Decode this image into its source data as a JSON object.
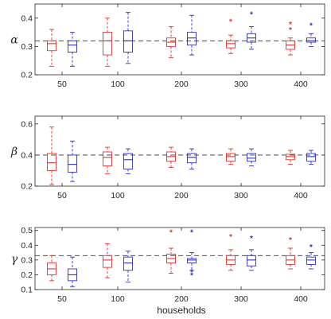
{
  "chart_data": {
    "type": "box",
    "xlabel": "households",
    "x_categories": [
      "50",
      "100",
      "200",
      "300",
      "400"
    ],
    "series": [
      {
        "name": "",
        "color": "#e8312a"
      },
      {
        "name": "",
        "color": "#2f2fc8"
      }
    ],
    "panels": [
      {
        "ylabel": "α",
        "ylim": [
          0.2,
          0.45
        ],
        "yticks": [
          0.2,
          0.3,
          0.4
        ],
        "reference_line": 0.32,
        "boxes": [
          {
            "group": "50",
            "series": 0,
            "whisker_low": 0.23,
            "q1": 0.285,
            "median": 0.31,
            "q3": 0.32,
            "whisker_high": 0.36,
            "outliers": []
          },
          {
            "group": "50",
            "series": 1,
            "whisker_low": 0.23,
            "q1": 0.28,
            "median": 0.305,
            "q3": 0.32,
            "whisker_high": 0.35,
            "outliers": []
          },
          {
            "group": "100",
            "series": 0,
            "whisker_low": 0.23,
            "q1": 0.27,
            "median": 0.32,
            "q3": 0.35,
            "whisker_high": 0.4,
            "outliers": []
          },
          {
            "group": "100",
            "series": 1,
            "whisker_low": 0.24,
            "q1": 0.28,
            "median": 0.32,
            "q3": 0.355,
            "whisker_high": 0.42,
            "outliers": []
          },
          {
            "group": "200",
            "series": 0,
            "whisker_low": 0.26,
            "q1": 0.3,
            "median": 0.315,
            "q3": 0.33,
            "whisker_high": 0.37,
            "outliers": []
          },
          {
            "group": "200",
            "series": 1,
            "whisker_low": 0.27,
            "q1": 0.305,
            "median": 0.33,
            "q3": 0.35,
            "whisker_high": 0.41,
            "outliers": []
          },
          {
            "group": "300",
            "series": 0,
            "whisker_low": 0.275,
            "q1": 0.295,
            "median": 0.31,
            "q3": 0.32,
            "whisker_high": 0.34,
            "outliers": [
              0.39
            ]
          },
          {
            "group": "300",
            "series": 1,
            "whisker_low": 0.29,
            "q1": 0.315,
            "median": 0.33,
            "q3": 0.345,
            "whisker_high": 0.37,
            "outliers": [
              0.415
            ]
          },
          {
            "group": "400",
            "series": 0,
            "whisker_low": 0.27,
            "q1": 0.29,
            "median": 0.305,
            "q3": 0.32,
            "whisker_high": 0.33,
            "outliers": [
              0.36,
              0.38
            ]
          },
          {
            "group": "400",
            "series": 1,
            "whisker_low": 0.3,
            "q1": 0.315,
            "median": 0.32,
            "q3": 0.33,
            "whisker_high": 0.345,
            "outliers": [
              0.375
            ]
          }
        ]
      },
      {
        "ylabel": "β",
        "ylim": [
          0.2,
          0.65
        ],
        "yticks": [
          0.2,
          0.4,
          0.6
        ],
        "reference_line": 0.4,
        "boxes": [
          {
            "group": "50",
            "series": 0,
            "whisker_low": 0.21,
            "q1": 0.3,
            "median": 0.35,
            "q3": 0.41,
            "whisker_high": 0.58,
            "outliers": []
          },
          {
            "group": "50",
            "series": 1,
            "whisker_low": 0.23,
            "q1": 0.29,
            "median": 0.34,
            "q3": 0.4,
            "whisker_high": 0.49,
            "outliers": []
          },
          {
            "group": "100",
            "series": 0,
            "whisker_low": 0.28,
            "q1": 0.33,
            "median": 0.385,
            "q3": 0.42,
            "whisker_high": 0.45,
            "outliers": []
          },
          {
            "group": "100",
            "series": 1,
            "whisker_low": 0.28,
            "q1": 0.31,
            "median": 0.37,
            "q3": 0.41,
            "whisker_high": 0.44,
            "outliers": []
          },
          {
            "group": "200",
            "series": 0,
            "whisker_low": 0.32,
            "q1": 0.36,
            "median": 0.39,
            "q3": 0.42,
            "whisker_high": 0.45,
            "outliers": []
          },
          {
            "group": "200",
            "series": 1,
            "whisker_low": 0.31,
            "q1": 0.35,
            "median": 0.385,
            "q3": 0.41,
            "whisker_high": 0.44,
            "outliers": []
          },
          {
            "group": "300",
            "series": 0,
            "whisker_low": 0.34,
            "q1": 0.36,
            "median": 0.39,
            "q3": 0.41,
            "whisker_high": 0.44,
            "outliers": []
          },
          {
            "group": "300",
            "series": 1,
            "whisker_low": 0.33,
            "q1": 0.36,
            "median": 0.38,
            "q3": 0.41,
            "whisker_high": 0.44,
            "outliers": []
          },
          {
            "group": "400",
            "series": 0,
            "whisker_low": 0.34,
            "q1": 0.37,
            "median": 0.39,
            "q3": 0.405,
            "whisker_high": 0.43,
            "outliers": []
          },
          {
            "group": "400",
            "series": 1,
            "whisker_low": 0.34,
            "q1": 0.36,
            "median": 0.39,
            "q3": 0.41,
            "whisker_high": 0.43,
            "outliers": []
          }
        ]
      },
      {
        "ylabel": "γ",
        "ylim": [
          0.1,
          0.52
        ],
        "yticks": [
          0.1,
          0.2,
          0.3,
          0.4,
          0.5
        ],
        "reference_line": 0.33,
        "boxes": [
          {
            "group": "50",
            "series": 0,
            "whisker_low": 0.16,
            "q1": 0.2,
            "median": 0.24,
            "q3": 0.28,
            "whisker_high": 0.33,
            "outliers": []
          },
          {
            "group": "50",
            "series": 1,
            "whisker_low": 0.12,
            "q1": 0.16,
            "median": 0.2,
            "q3": 0.24,
            "whisker_high": 0.32,
            "outliers": []
          },
          {
            "group": "100",
            "series": 0,
            "whisker_low": 0.18,
            "q1": 0.25,
            "median": 0.3,
            "q3": 0.33,
            "whisker_high": 0.41,
            "outliers": []
          },
          {
            "group": "100",
            "series": 1,
            "whisker_low": 0.15,
            "q1": 0.23,
            "median": 0.28,
            "q3": 0.32,
            "whisker_high": 0.36,
            "outliers": []
          },
          {
            "group": "200",
            "series": 0,
            "whisker_low": 0.21,
            "q1": 0.28,
            "median": 0.31,
            "q3": 0.34,
            "whisker_high": 0.38,
            "outliers": [
              0.49
            ]
          },
          {
            "group": "200",
            "series": 1,
            "whisker_low": 0.23,
            "q1": 0.28,
            "median": 0.3,
            "q3": 0.31,
            "whisker_high": 0.35,
            "outliers": [
              0.49,
              0.22,
              0.2
            ]
          },
          {
            "group": "300",
            "series": 0,
            "whisker_low": 0.23,
            "q1": 0.27,
            "median": 0.3,
            "q3": 0.33,
            "whisker_high": 0.37,
            "outliers": [
              0.46
            ]
          },
          {
            "group": "300",
            "series": 1,
            "whisker_low": 0.23,
            "q1": 0.26,
            "median": 0.3,
            "q3": 0.33,
            "whisker_high": 0.37,
            "outliers": [
              0.45
            ]
          },
          {
            "group": "400",
            "series": 0,
            "whisker_low": 0.24,
            "q1": 0.27,
            "median": 0.3,
            "q3": 0.33,
            "whisker_high": 0.38,
            "outliers": [
              0.44
            ]
          },
          {
            "group": "400",
            "series": 1,
            "whisker_low": 0.24,
            "q1": 0.27,
            "median": 0.3,
            "q3": 0.32,
            "whisker_high": 0.35,
            "outliers": [
              0.39
            ]
          }
        ]
      }
    ]
  }
}
